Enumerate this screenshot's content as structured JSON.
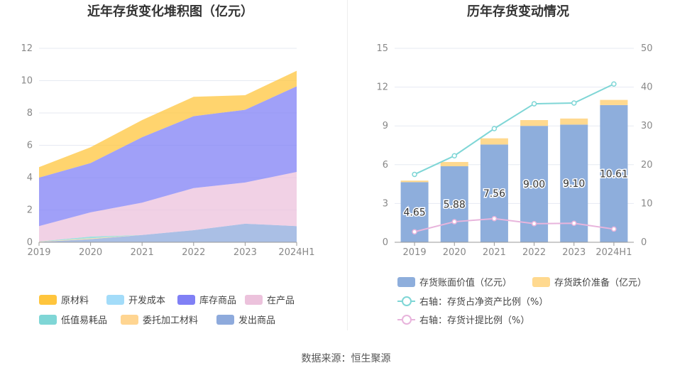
{
  "chart_data": [
    {
      "type": "area",
      "stacked": true,
      "title": "近年存货变化堆积图（亿元）",
      "categories": [
        "2019",
        "2020",
        "2021",
        "2022",
        "2023",
        "2024H1"
      ],
      "ylim": [
        0,
        12
      ],
      "yticks": [
        0,
        2,
        4,
        6,
        8,
        10,
        12
      ],
      "grid": true,
      "legend_placement": "bottom",
      "series": [
        {
          "name": "发出商品",
          "color": "#8eaadc",
          "values": [
            0.02,
            0.2,
            0.45,
            0.75,
            1.15,
            1.0
          ]
        },
        {
          "name": "委托加工材料",
          "color": "#ffd591",
          "values": [
            0.02,
            0.05,
            0,
            0,
            0,
            0
          ]
        },
        {
          "name": "低值易耗品",
          "color": "#7fd6d6",
          "values": [
            0.01,
            0.1,
            0,
            0,
            0,
            0
          ]
        },
        {
          "name": "在产品",
          "color": "#ecc2dc",
          "values": [
            0.95,
            1.5,
            2.0,
            2.6,
            2.55,
            3.35
          ]
        },
        {
          "name": "开发成本",
          "color": "#a3dcf9",
          "values": [
            0,
            0,
            0,
            0,
            0,
            0
          ]
        },
        {
          "name": "库存商品",
          "color": "#8080f5",
          "values": [
            3.0,
            3.05,
            4.05,
            4.45,
            4.5,
            5.3
          ]
        },
        {
          "name": "原材料",
          "color": "#ffc53d",
          "values": [
            0.65,
            0.98,
            1.06,
            1.2,
            0.9,
            0.96
          ]
        }
      ],
      "legend_order": [
        "原材料",
        "开发成本",
        "库存商品",
        "在产品",
        "低值易耗品",
        "委托加工材料",
        "发出商品"
      ]
    },
    {
      "type": "bar",
      "stacked": true,
      "title": "历年存货变动情况",
      "categories": [
        "2019",
        "2020",
        "2021",
        "2022",
        "2023",
        "2024H1"
      ],
      "ylim": [
        0,
        15
      ],
      "yticks": [
        0,
        3,
        6,
        9,
        12,
        15
      ],
      "y2lim": [
        0,
        50
      ],
      "y2ticks": [
        0,
        10,
        20,
        30,
        40,
        50
      ],
      "grid": true,
      "legend_placement": "bottom",
      "bars": [
        {
          "name": "存货账面价值（亿元）",
          "color": "#8eaedc",
          "values": [
            4.65,
            5.88,
            7.56,
            9.0,
            9.1,
            10.61
          ],
          "labels": [
            "4.65",
            "5.88",
            "7.56",
            "9.00",
            "9.10",
            "10.61"
          ]
        },
        {
          "name": "存货跌价准备（亿元）",
          "color": "#ffd98f",
          "values": [
            0.12,
            0.33,
            0.48,
            0.45,
            0.47,
            0.4
          ]
        }
      ],
      "lines": [
        {
          "name": "右轴：存货占净资产比例（%）",
          "color": "#7fd6d6",
          "axis": "right",
          "values": [
            17.5,
            22.3,
            29.3,
            35.7,
            35.9,
            40.8
          ]
        },
        {
          "name": "右轴：存货计提比例（%）",
          "color": "#e8b4dc",
          "axis": "right",
          "values": [
            2.7,
            5.3,
            6.1,
            4.8,
            4.9,
            3.4
          ]
        }
      ]
    }
  ],
  "footer": "数据来源：恒生聚源"
}
